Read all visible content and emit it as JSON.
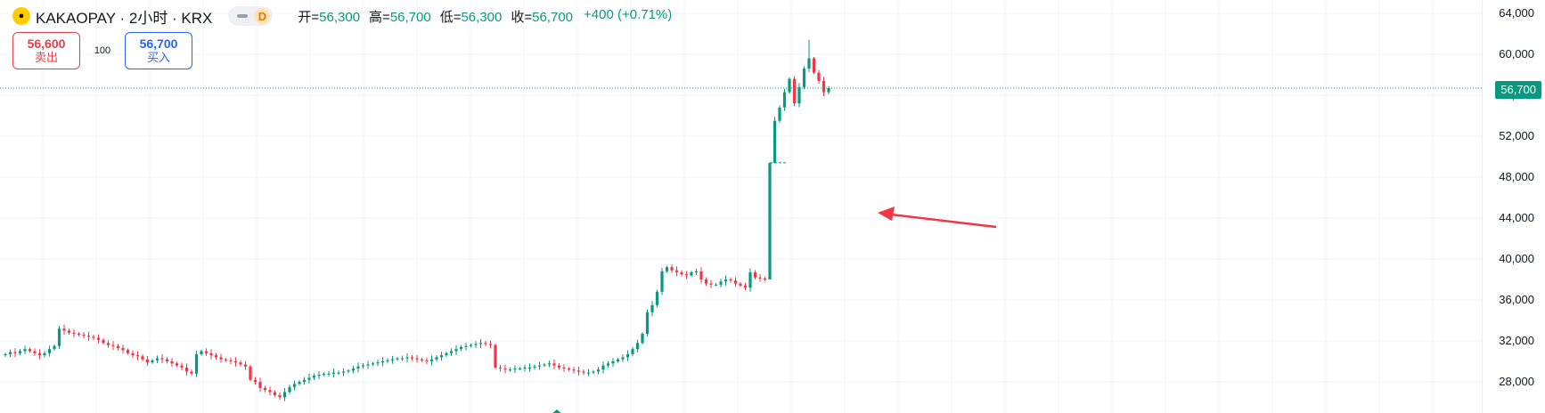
{
  "header": {
    "symbol_title": "KAKAOPAY · 2小时 · KRX",
    "logo_icon": "kakaopay-chat-bubble-icon",
    "data_mode": "D",
    "ohlc": [
      {
        "label": "开=",
        "value": "56,300"
      },
      {
        "label": "高=",
        "value": "56,700"
      },
      {
        "label": "低=",
        "value": "56,300"
      },
      {
        "label": "收=",
        "value": "56,700"
      }
    ],
    "change": "+400 (+0.71%)"
  },
  "trade": {
    "sell_price": "56,600",
    "sell_label": "卖出",
    "quantity": "100",
    "buy_price": "56,700",
    "buy_label": "买入"
  },
  "last_price_label": "56,700",
  "colors": {
    "up": "#089981",
    "down": "#f23645",
    "grid": "#f0f3fa",
    "annotation_arrow": "#f23645"
  },
  "chart_data": {
    "type": "candlestick",
    "title": "",
    "xlabel": "",
    "ylabel": "",
    "ylim": [
      26000,
      65000
    ],
    "y_ticks": [
      "28,000",
      "32,000",
      "36,000",
      "40,000",
      "44,000",
      "48,000",
      "52,000",
      "56,000",
      "60,000",
      "64,000"
    ],
    "last_price": 56700,
    "grid": true,
    "closes": [
      30700,
      30900,
      30800,
      31000,
      31200,
      31000,
      30800,
      30600,
      30800,
      31200,
      31500,
      33200,
      33000,
      32800,
      32700,
      32600,
      32500,
      32400,
      32300,
      32100,
      31800,
      31600,
      31500,
      31300,
      31100,
      30800,
      30600,
      30500,
      30200,
      29900,
      30100,
      30300,
      30200,
      30000,
      29800,
      29600,
      29400,
      29000,
      28800,
      30700,
      31000,
      30800,
      30600,
      30400,
      30200,
      30100,
      30000,
      29900,
      29700,
      29500,
      28200,
      28000,
      27400,
      27200,
      27000,
      26700,
      26500,
      27000,
      27500,
      27800,
      28000,
      28200,
      28400,
      28600,
      28700,
      28800,
      28800,
      28900,
      28900,
      29000,
      29100,
      29300,
      29500,
      29600,
      29700,
      29800,
      29900,
      30000,
      30100,
      30200,
      30300,
      30300,
      30400,
      30300,
      30200,
      30100,
      30000,
      30200,
      30400,
      30600,
      30800,
      31000,
      31200,
      31400,
      31500,
      31600,
      31700,
      31800,
      31700,
      31600,
      29400,
      29300,
      29200,
      29200,
      29300,
      29300,
      29400,
      29400,
      29500,
      29600,
      29700,
      29800,
      29600,
      29400,
      29300,
      29200,
      29100,
      29000,
      28900,
      28900,
      29000,
      29200,
      29600,
      29800,
      30000,
      30200,
      30400,
      30700,
      31200,
      31800,
      32700,
      34800,
      35500,
      36800,
      38800,
      39200,
      38900,
      38700,
      38500,
      38400,
      38700,
      38800,
      38000,
      37600,
      37500,
      37500,
      37800,
      38000,
      37900,
      37600,
      37400,
      37200,
      38700,
      38200,
      38100,
      38000,
      49400,
      53500,
      54800,
      56300,
      57600,
      55200,
      56800,
      58600,
      59600,
      58200,
      57400,
      56300,
      56700
    ],
    "annotations": [
      {
        "type": "arrow",
        "pointing_at": "gap-up candle"
      }
    ]
  }
}
